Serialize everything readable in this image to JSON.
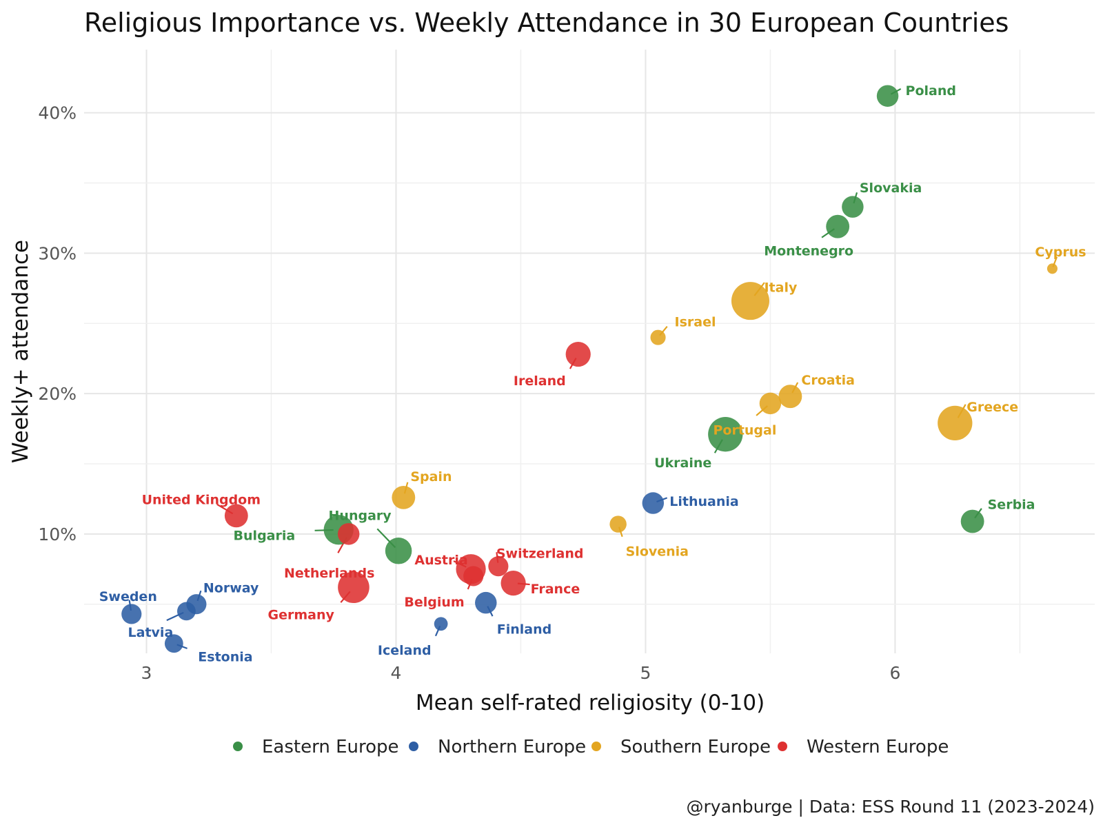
{
  "chart_data": {
    "type": "scatter",
    "title": "Religious Importance vs. Weekly Attendance in 30 European Countries",
    "xlabel": "Mean self-rated religiosity (0-10)",
    "ylabel": "Weekly+ attendance",
    "caption": "@ryanburge | Data: ESS Round 11 (2023-2024)",
    "xlim": [
      2.75,
      6.8
    ],
    "ylim": [
      1.5,
      44.5
    ],
    "x_ticks": [
      {
        "value": 3,
        "label": "3"
      },
      {
        "value": 4,
        "label": "4"
      },
      {
        "value": 5,
        "label": "5"
      },
      {
        "value": 6,
        "label": "6"
      }
    ],
    "y_ticks": [
      {
        "value": 10,
        "label": "10%"
      },
      {
        "value": 20,
        "label": "20%"
      },
      {
        "value": 30,
        "label": "30%"
      },
      {
        "value": 40,
        "label": "40%"
      }
    ],
    "grid": true,
    "legend_position": "bottom",
    "groups": [
      {
        "name": "Eastern Europe",
        "color": "#3a8f47"
      },
      {
        "name": "Northern Europe",
        "color": "#2e5ea4"
      },
      {
        "name": "Southern Europe",
        "color": "#e3a520"
      },
      {
        "name": "Western Europe",
        "color": "#de3131"
      }
    ],
    "points": [
      {
        "label": "Poland",
        "group": "Eastern Europe",
        "x": 5.97,
        "y": 41.2,
        "size": 5
      },
      {
        "label": "Slovakia",
        "group": "Eastern Europe",
        "x": 5.83,
        "y": 33.3,
        "size": 5
      },
      {
        "label": "Montenegro",
        "group": "Eastern Europe",
        "x": 5.77,
        "y": 31.9,
        "size": 5.5
      },
      {
        "label": "Ukraine",
        "group": "Eastern Europe",
        "x": 5.32,
        "y": 17.1,
        "size": 9
      },
      {
        "label": "Serbia",
        "group": "Eastern Europe",
        "x": 6.31,
        "y": 10.9,
        "size": 5.5
      },
      {
        "label": "Hungary",
        "group": "Eastern Europe",
        "x": 4.01,
        "y": 8.8,
        "size": 6.5
      },
      {
        "label": "Bulgaria",
        "group": "Eastern Europe",
        "x": 3.77,
        "y": 10.3,
        "size": 7.5
      },
      {
        "label": "Lithuania",
        "group": "Northern Europe",
        "x": 5.03,
        "y": 12.2,
        "size": 5
      },
      {
        "label": "Finland",
        "group": "Northern Europe",
        "x": 4.36,
        "y": 5.1,
        "size": 5
      },
      {
        "label": "Iceland",
        "group": "Northern Europe",
        "x": 4.18,
        "y": 3.6,
        "size": 2.5
      },
      {
        "label": "Sweden",
        "group": "Northern Europe",
        "x": 2.94,
        "y": 4.3,
        "size": 4.5
      },
      {
        "label": "Norway",
        "group": "Northern Europe",
        "x": 3.2,
        "y": 5.0,
        "size": 4.5
      },
      {
        "label": "Latvia",
        "group": "Northern Europe",
        "x": 3.16,
        "y": 4.5,
        "size": 4
      },
      {
        "label": "Estonia",
        "group": "Northern Europe",
        "x": 3.11,
        "y": 2.2,
        "size": 4
      },
      {
        "label": "Cyprus",
        "group": "Southern Europe",
        "x": 6.63,
        "y": 28.9,
        "size": 1.5
      },
      {
        "label": "Italy",
        "group": "Southern Europe",
        "x": 5.42,
        "y": 26.6,
        "size": 10
      },
      {
        "label": "Israel",
        "group": "Southern Europe",
        "x": 5.05,
        "y": 24.0,
        "size": 3
      },
      {
        "label": "Croatia",
        "group": "Southern Europe",
        "x": 5.58,
        "y": 19.8,
        "size": 5.5
      },
      {
        "label": "Portugal",
        "group": "Southern Europe",
        "x": 5.5,
        "y": 19.3,
        "size": 5
      },
      {
        "label": "Greece",
        "group": "Southern Europe",
        "x": 6.24,
        "y": 17.9,
        "size": 9
      },
      {
        "label": "Spain",
        "group": "Southern Europe",
        "x": 4.03,
        "y": 12.6,
        "size": 5.5
      },
      {
        "label": "Slovenia",
        "group": "Southern Europe",
        "x": 4.89,
        "y": 10.7,
        "size": 3.5
      },
      {
        "label": "Ireland",
        "group": "Western Europe",
        "x": 4.73,
        "y": 22.8,
        "size": 6
      },
      {
        "label": "United Kingdom",
        "group": "Western Europe",
        "x": 3.36,
        "y": 11.3,
        "size": 5.5
      },
      {
        "label": "Netherlands",
        "group": "Western Europe",
        "x": 3.81,
        "y": 10.0,
        "size": 5
      },
      {
        "label": "Germany",
        "group": "Western Europe",
        "x": 3.83,
        "y": 6.2,
        "size": 8
      },
      {
        "label": "Austria",
        "group": "Western Europe",
        "x": 4.3,
        "y": 7.5,
        "size": 7.5
      },
      {
        "label": "Belgium",
        "group": "Western Europe",
        "x": 4.31,
        "y": 7.0,
        "size": 4.5
      },
      {
        "label": "Switzerland",
        "group": "Western Europe",
        "x": 4.41,
        "y": 7.7,
        "size": 4.5
      },
      {
        "label": "France",
        "group": "Western Europe",
        "x": 4.47,
        "y": 6.5,
        "size": 6
      }
    ]
  }
}
